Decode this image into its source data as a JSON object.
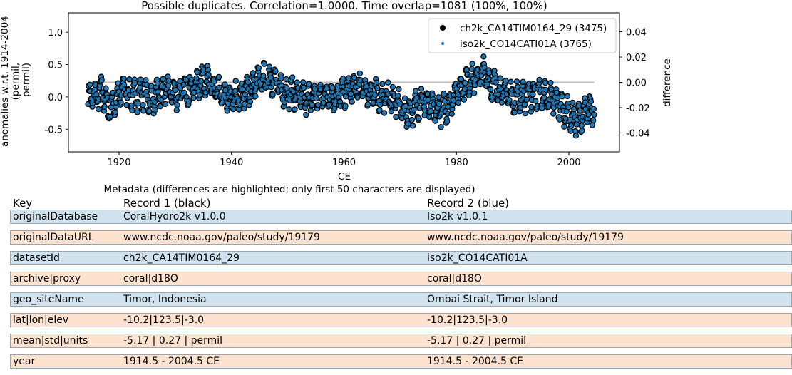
{
  "chart_data": {
    "type": "scatter",
    "title": "Possible duplicates. Correlation=1.0000. Time overlap=1081 (100%, 100%)",
    "xlabel": "CE",
    "ylabel": "anomalies w.r.t. 1914-2004 (permil, permil)",
    "y2label": "difference",
    "xlim": [
      1911,
      2009
    ],
    "ylim": [
      -0.85,
      1.3
    ],
    "y2lim": [
      -0.055,
      0.055
    ],
    "xticks": [
      1920,
      1940,
      1960,
      1980,
      2000
    ],
    "yticks": [
      -0.5,
      0.0,
      0.5,
      1.0
    ],
    "y2ticks": [
      -0.04,
      -0.02,
      0.0,
      0.02,
      0.04
    ],
    "legend_position": "top-right",
    "series": [
      {
        "name": "ch2k_CA14TIM0164_29 (3475)",
        "color": "#000000",
        "marker": "circle-black-edge"
      },
      {
        "name": "iso2k_CO14CATI01A (3765)",
        "color": "#1f77b4",
        "marker": "small-dot"
      }
    ],
    "anchors_x": [
      1914.5,
      1916,
      1917,
      1918,
      1920,
      1921,
      1922,
      1924,
      1926,
      1928,
      1930,
      1932,
      1934,
      1935,
      1937,
      1939,
      1941,
      1943,
      1945,
      1947,
      1949,
      1951,
      1953,
      1955,
      1957,
      1959,
      1961,
      1963,
      1965,
      1967,
      1969,
      1971,
      1972,
      1974,
      1976,
      1978,
      1980,
      1982,
      1984,
      1985,
      1986,
      1988,
      1990,
      1992,
      1994,
      1996,
      1998,
      1999,
      2001,
      2003,
      2004.5
    ],
    "anchors_y": [
      0.0,
      0.0,
      0.1,
      -0.2,
      0.0,
      0.15,
      0.0,
      0.05,
      -0.05,
      0.1,
      0.05,
      0.1,
      0.2,
      0.3,
      0.1,
      -0.05,
      0.0,
      0.1,
      0.25,
      0.3,
      0.1,
      0.05,
      -0.05,
      0.0,
      0.05,
      0.0,
      0.1,
      0.15,
      0.05,
      0.0,
      -0.05,
      -0.25,
      -0.2,
      -0.05,
      -0.2,
      -0.2,
      0.1,
      0.25,
      0.3,
      0.4,
      0.2,
      0.1,
      0.0,
      0.0,
      0.05,
      0.0,
      -0.1,
      -0.2,
      -0.35,
      -0.25,
      -0.2
    ],
    "difference": 0.0
  },
  "metadata": {
    "caption": "Metadata (differences are highlighted; only first 50 characters are displayed)",
    "headers": {
      "key": "Key",
      "record1": "Record 1 (black)",
      "record2": "Record 2 (blue)"
    },
    "rows": [
      {
        "key": "originalDatabase",
        "r1": "CoralHydro2k v1.0.0",
        "r2": "Iso2k v1.0.1",
        "color": "#cfe2ee"
      },
      {
        "key": "originalDataURL",
        "r1": "www.ncdc.noaa.gov/paleo/study/19179",
        "r2": "www.ncdc.noaa.gov/paleo/study/19179",
        "color": "#fde3cf"
      },
      {
        "key": "datasetId",
        "r1": "ch2k_CA14TIM0164_29",
        "r2": "iso2k_CO14CATI01A",
        "color": "#cfe2ee"
      },
      {
        "key": "archive|proxy",
        "r1": "coral|d18O",
        "r2": "coral|d18O",
        "color": "#fde3cf"
      },
      {
        "key": "geo_siteName",
        "r1": "Timor, Indonesia",
        "r2": "Ombai Strait, Timor Island",
        "color": "#cfe2ee"
      },
      {
        "key": "lat|lon|elev",
        "r1": "-10.2|123.5|-3.0",
        "r2": "-10.2|123.5|-3.0",
        "color": "#fde3cf"
      },
      {
        "key": "mean|std|units",
        "r1": "-5.17 | 0.27 | permil",
        "r2": "-5.17 | 0.27 | permil",
        "color": "#fde3cf"
      },
      {
        "key": "year",
        "r1": "1914.5 - 2004.5 CE",
        "r2": "1914.5 - 2004.5 CE",
        "color": "#fde3cf"
      }
    ]
  }
}
